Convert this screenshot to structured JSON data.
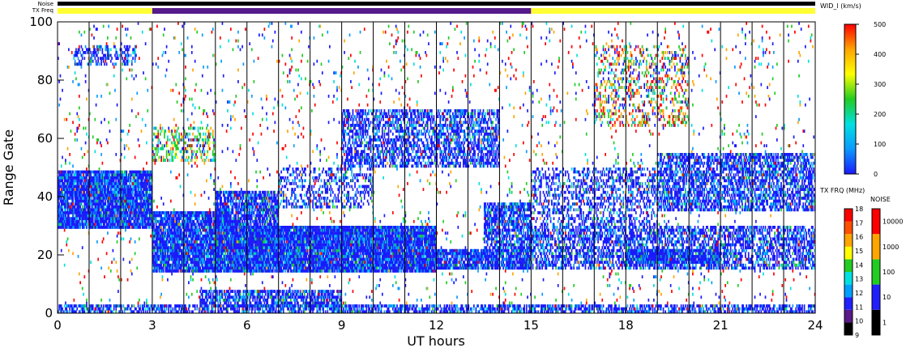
{
  "chart_data": {
    "type": "heatmap",
    "title": "",
    "xlabel": "UT hours",
    "ylabel": "Range Gate",
    "xlim": [
      0,
      24
    ],
    "ylim": [
      0,
      100
    ],
    "xticks": [
      "0",
      "3",
      "6",
      "9",
      "12",
      "15",
      "18",
      "21",
      "24"
    ],
    "yticks": [
      "0",
      "20",
      "40",
      "60",
      "80",
      "100"
    ],
    "grid": "vertical lines each UT hour",
    "bars": {
      "noise_label": "Noise",
      "txfreq_label": "TX Freq",
      "txfreq_segments": [
        {
          "start": 0,
          "end": 3,
          "color": "#ffff33"
        },
        {
          "start": 3,
          "end": 15,
          "color": "#551a8b"
        },
        {
          "start": 15,
          "end": 24,
          "color": "#ffff33"
        }
      ]
    },
    "width_scale": {
      "title": "WID_l (km/s)",
      "ticks": [
        "0",
        "100",
        "200",
        "300",
        "400",
        "500"
      ],
      "colors": [
        "#1a1aff",
        "#0b9bff",
        "#00e0e0",
        "#22cc22",
        "#ffff00",
        "#ffa500",
        "#ff0000"
      ]
    },
    "txfreq_scale": {
      "title": "TX FRQ (MHz)",
      "ticks": [
        "9",
        "10",
        "11",
        "12",
        "13",
        "14",
        "15",
        "16",
        "17",
        "18"
      ],
      "colors": [
        "#000000",
        "#5a1a8a",
        "#2020ff",
        "#00a0ff",
        "#00e0e0",
        "#22cc22",
        "#ffff00",
        "#ffa500",
        "#ff5000",
        "#ff0000"
      ]
    },
    "noise_scale": {
      "title": "NOISE",
      "ticks": [
        "1",
        "10",
        "100",
        "1000",
        "10000"
      ],
      "colors": [
        "#000000",
        "#2020ff",
        "#22cc22",
        "#ffa500",
        "#ff0000"
      ]
    },
    "echo_regions": [
      {
        "x0": 0,
        "x1": 3,
        "y0": 29,
        "y1": 49,
        "density": 0.92,
        "dominant": "blue"
      },
      {
        "x0": 3,
        "x1": 5.5,
        "y0": 14,
        "y1": 35,
        "density": 0.9,
        "dominant": "blue"
      },
      {
        "x0": 5,
        "x1": 7,
        "y0": 22,
        "y1": 42,
        "density": 0.75,
        "dominant": "blue"
      },
      {
        "x0": 5.5,
        "x1": 12,
        "y0": 14,
        "y1": 30,
        "density": 0.95,
        "dominant": "blue"
      },
      {
        "x0": 12,
        "x1": 15,
        "y0": 15,
        "y1": 22,
        "density": 0.85,
        "dominant": "blue"
      },
      {
        "x0": 13.5,
        "x1": 15,
        "y0": 22,
        "y1": 38,
        "density": 0.7,
        "dominant": "blue"
      },
      {
        "x0": 9,
        "x1": 14,
        "y0": 50,
        "y1": 70,
        "density": 0.55,
        "dominant": "blue"
      },
      {
        "x0": 7,
        "x1": 10,
        "y0": 36,
        "y1": 50,
        "density": 0.35,
        "dominant": "blue"
      },
      {
        "x0": 15,
        "x1": 24,
        "y0": 15,
        "y1": 30,
        "density": 0.55,
        "dominant": "blue"
      },
      {
        "x0": 18,
        "x1": 21,
        "y0": 17,
        "y1": 22,
        "density": 0.85,
        "dominant": "blue"
      },
      {
        "x0": 19,
        "x1": 24,
        "y0": 35,
        "y1": 55,
        "density": 0.6,
        "dominant": "blue"
      },
      {
        "x0": 15,
        "x1": 19,
        "y0": 30,
        "y1": 50,
        "density": 0.35,
        "dominant": "blue"
      },
      {
        "x0": 4.5,
        "x1": 9,
        "y0": 2,
        "y1": 8,
        "density": 0.7,
        "dominant": "blue"
      },
      {
        "x0": 0,
        "x1": 24,
        "y0": 0,
        "y1": 3,
        "density": 0.6,
        "dominant": "blue"
      },
      {
        "x0": 3,
        "x1": 5,
        "y0": 52,
        "y1": 64,
        "density": 0.35,
        "dominant": "green"
      },
      {
        "x0": 17,
        "x1": 20,
        "y0": 64,
        "y1": 92,
        "density": 0.25,
        "dominant": "orange"
      },
      {
        "x0": 0.5,
        "x1": 2.5,
        "y0": 85,
        "y1": 92,
        "density": 0.35,
        "dominant": "blue"
      },
      {
        "x0": 0,
        "x1": 24,
        "y0": 0,
        "y1": 100,
        "density": 0.03,
        "dominant": "mixed"
      }
    ]
  }
}
